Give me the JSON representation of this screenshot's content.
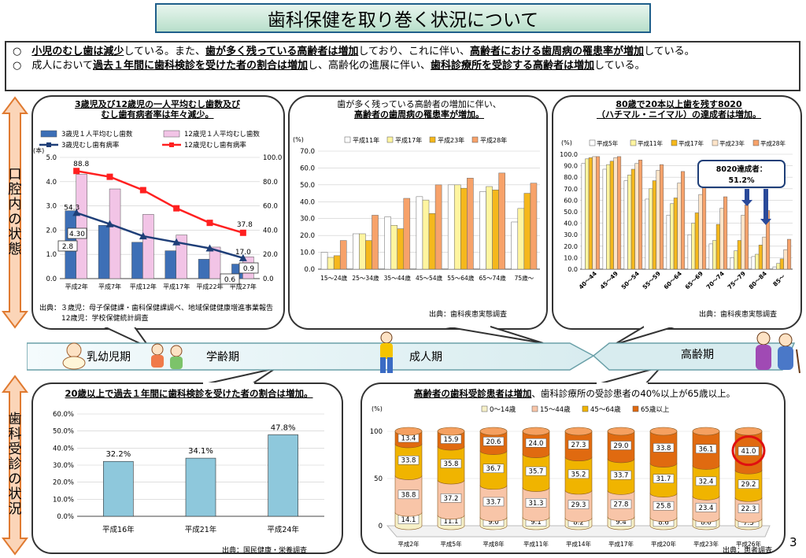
{
  "header": {
    "title": "歯科保健を取り巻く状況について"
  },
  "summary": {
    "l1": [
      "○　",
      "小児のむし歯は減少",
      "している。また、",
      "歯が多く残っている高齢者は増加",
      "しており、これに伴い、",
      "高齢者における歯周病の罹患率が増加",
      "している。"
    ],
    "l2": [
      "○　成人において",
      "過去１年間に歯科検診を受けた者の割合は増加",
      "し、高齢化の進展に伴い、",
      "歯科診療所を受診する高齢者は増加",
      "している。"
    ]
  },
  "side": {
    "oral": "口腔内の状態",
    "dental": "歯科受診の状況"
  },
  "stages": {
    "infant": "乳幼児期",
    "school": "学齢期",
    "adult": "成人期",
    "elderly": "高齢期"
  },
  "page_number": "3",
  "chart_data": [
    {
      "type": "bar",
      "id": "caries",
      "caption": [
        "3歳児及び12歳児の一人平均むし歯数及び",
        "むし歯有病者率は年々減少。"
      ],
      "categories": [
        "平成2年",
        "平成7年",
        "平成12年",
        "平成17年",
        "平成22年",
        "平成27年"
      ],
      "left_unit": "(本)",
      "left_ticks": [
        "0.0",
        "1.0",
        "2.0",
        "3.0",
        "4.0",
        "5.0"
      ],
      "right_ticks": [
        "0.0",
        "20.0",
        "40.0",
        "60.0",
        "80.0",
        "100.0"
      ],
      "ylim": [
        0,
        5
      ],
      "y2lim": [
        0,
        100
      ],
      "series": [
        {
          "name": "3歳児１人平均むし歯数",
          "kind": "bar",
          "color": "#3d6fb6",
          "values": [
            2.8,
            2.2,
            1.5,
            1.15,
            0.8,
            0.6
          ]
        },
        {
          "name": "12歳児１人平均むし歯数",
          "kind": "bar",
          "color": "#f2c4e6",
          "values": [
            4.3,
            3.7,
            2.65,
            1.8,
            1.3,
            0.9
          ]
        },
        {
          "name": "3歳児むし歯有病率",
          "kind": "line",
          "color": "#1f3f78",
          "values": [
            54.3,
            45,
            35,
            30,
            25,
            17
          ]
        },
        {
          "name": "12歳児むし歯有病率",
          "kind": "line",
          "color": "#ff2020",
          "values": [
            88.8,
            84,
            73,
            58,
            46,
            37.8
          ]
        }
      ],
      "labels": {
        "p1": "88.8",
        "p2": "54.3",
        "p3": "37.8",
        "p4": "17.0",
        "b1": "4.30",
        "b2": "2.8",
        "b3": "0.6",
        "b4": "0.9"
      },
      "source": [
        "出典：３歳児：母子保健課・歯科保健課調べ、地域保健健康増進事業報告",
        "12歳児：学校保健統計調査"
      ]
    },
    {
      "type": "bar",
      "id": "perio",
      "caption": [
        "歯が多く残っている高齢者の増加に伴い、",
        "高齢者の歯周病の罹患率が増加。"
      ],
      "unit": "(%)",
      "legend": [
        "平成11年",
        "平成17年",
        "平成23年",
        "平成28年"
      ],
      "colors": [
        "#ffffff",
        "#fff5a0",
        "#f5b81c",
        "#f7a26a"
      ],
      "categories": [
        "15～24歳",
        "25～34歳",
        "35～44歳",
        "45～54歳",
        "55～64歳",
        "65～74歳",
        "75歳～"
      ],
      "ticks": [
        "0.0",
        "10.0",
        "20.0",
        "30.0",
        "40.0",
        "50.0",
        "60.0",
        "70.0"
      ],
      "ylim": [
        0,
        70
      ],
      "values": [
        [
          10,
          7,
          8,
          17
        ],
        [
          21,
          21,
          17,
          32
        ],
        [
          31,
          26,
          24,
          42
        ],
        [
          43,
          41,
          33,
          50
        ],
        [
          50,
          50,
          48,
          54
        ],
        [
          46,
          49,
          47,
          57
        ],
        [
          28,
          36,
          45,
          51
        ]
      ],
      "source": "出典：歯科疾患実態調査"
    },
    {
      "type": "bar",
      "id": "teeth",
      "caption": [
        "80歳で20本以上歯を残す8020",
        "（ハチマル・ニイマル）の達成者は増加。"
      ],
      "unit": "(%)",
      "legend": [
        "平成5年",
        "平成11年",
        "平成17年",
        "平成23年",
        "平成28年"
      ],
      "colors": [
        "#ffffff",
        "#fff5a0",
        "#f5b81c",
        "#fde4c8",
        "#f7a26a"
      ],
      "categories": [
        "40～44",
        "45～49",
        "50～54",
        "55～59",
        "60～64",
        "65～69",
        "70～74",
        "75～79",
        "80～84",
        "85～"
      ],
      "ticks": [
        "0.0",
        "10.0",
        "20.0",
        "30.0",
        "40.0",
        "50.0",
        "60.0",
        "70.0",
        "80.0",
        "90.0",
        "100.0"
      ],
      "ylim": [
        0,
        100
      ],
      "values": [
        [
          92,
          96,
          97,
          98,
          98
        ],
        [
          87,
          91,
          94,
          97,
          98
        ],
        [
          77,
          82,
          87,
          92,
          95
        ],
        [
          61,
          70,
          77,
          86,
          91
        ],
        [
          47,
          57,
          62,
          75,
          85
        ],
        [
          30,
          40,
          49,
          65,
          75
        ],
        [
          22,
          25,
          39,
          53,
          63
        ],
        [
          10,
          16,
          25,
          47,
          56
        ],
        [
          11,
          13,
          21,
          28,
          51
        ],
        [
          2,
          5,
          9,
          17,
          26
        ]
      ],
      "callout": [
        "8020達成者：",
        "51.2%"
      ],
      "source": "出典：歯科疾患実態調査"
    },
    {
      "type": "bar",
      "id": "checkup",
      "caption": "20歳以上で過去１年間に歯科検診を受けた者の割合は増加。",
      "categories": [
        "平成16年",
        "平成21年",
        "平成24年"
      ],
      "values": [
        32.2,
        34.1,
        47.8
      ],
      "value_labels": [
        "32.2%",
        "34.1%",
        "47.8%"
      ],
      "ticks": [
        "0.0%",
        "10.0%",
        "20.0%",
        "30.0%",
        "40.0%",
        "50.0%",
        "60.0%"
      ],
      "ylim": [
        0,
        60
      ],
      "color": "#8ec8dc",
      "source": "出典：国民健康・栄養調査"
    },
    {
      "type": "bar",
      "id": "patients",
      "caption_bold": "高齢者の歯科受診患者は増加",
      "caption_rest": "、歯科診療所の受診患者の40%以上が65歳以上。",
      "unit": "(%)",
      "legend": [
        "0～14歳",
        "15～44歳",
        "45～64歳",
        "65歳以上"
      ],
      "colors": [
        "#f6f0c8",
        "#f8c5a8",
        "#f0b400",
        "#e06a10"
      ],
      "categories": [
        "平成2年",
        "平成5年",
        "平成8年",
        "平成11年",
        "平成14年",
        "平成17年",
        "平成20年",
        "平成23年",
        "平成26年"
      ],
      "ticks": [
        "0",
        "50",
        "100"
      ],
      "ylim": [
        0,
        100
      ],
      "values": [
        [
          14.1,
          38.8,
          33.8,
          13.4
        ],
        [
          11.1,
          37.2,
          35.8,
          15.9
        ],
        [
          9.0,
          33.7,
          36.7,
          20.6
        ],
        [
          9.1,
          31.3,
          35.7,
          24.0
        ],
        [
          8.2,
          29.3,
          35.2,
          27.3
        ],
        [
          9.4,
          27.8,
          33.7,
          29.0
        ],
        [
          8.6,
          25.8,
          31.7,
          33.8
        ],
        [
          8.0,
          23.4,
          32.4,
          36.1
        ],
        [
          7.5,
          22.3,
          29.2,
          41.0
        ]
      ],
      "labels": [
        [
          "14.1",
          "38.8",
          "33.8",
          "13.4"
        ],
        [
          "11.1",
          "37.2",
          "35.8",
          "15.9"
        ],
        [
          "9.0",
          "33.7",
          "36.7",
          "20.6"
        ],
        [
          "9.1",
          "31.3",
          "35.7",
          "24.0"
        ],
        [
          "8.2",
          "29.3",
          "35.2",
          "27.3"
        ],
        [
          "9.4",
          "27.8",
          "33.7",
          "29.0"
        ],
        [
          "8.6",
          "25.8",
          "31.7",
          "33.8"
        ],
        [
          "8.0",
          "23.4",
          "32.4",
          "36.1"
        ],
        [
          "7.5",
          "22.3",
          "29.2",
          "41.0"
        ]
      ],
      "source": "出典：患者調査"
    }
  ]
}
